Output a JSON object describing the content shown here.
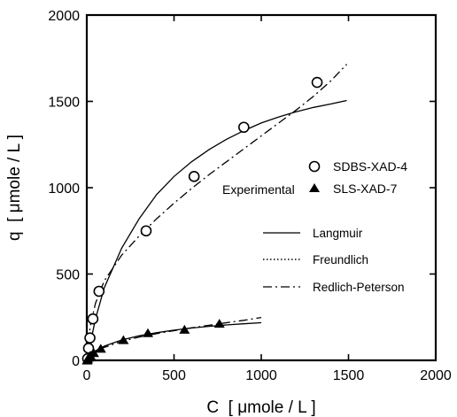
{
  "chart_data": {
    "type": "scatter",
    "xlabel": "C  [ μmole / L ]",
    "ylabel": "q  [ μmole / L ]",
    "xlim": [
      0,
      2000
    ],
    "ylim": [
      0,
      2000
    ],
    "xticks": [
      0,
      500,
      1000,
      1500,
      2000
    ],
    "yticks": [
      0,
      500,
      1000,
      1500,
      2000
    ],
    "x_tick_labels": [
      "0",
      "500",
      "1000",
      "1500",
      "2000"
    ],
    "y_tick_labels": [
      "0",
      "500",
      "1000",
      "1500",
      "2000"
    ],
    "grid": false,
    "legend_placement": "right",
    "legend": {
      "group_label": "Experimental",
      "markers": [
        {
          "label": "SDBS-XAD-4",
          "marker": "open-circle"
        },
        {
          "label": "SLS-XAD-7",
          "marker": "filled-triangle"
        }
      ],
      "lines": [
        {
          "label": "Langmuir",
          "style": "solid"
        },
        {
          "label": "Freundlich",
          "style": "dotted"
        },
        {
          "label": "Redlich-Peterson",
          "style": "dash-dot"
        }
      ]
    },
    "series": [
      {
        "name": "SDBS-XAD-4",
        "marker": "open-circle",
        "x": [
          5,
          10,
          18,
          35,
          70,
          340,
          615,
          900,
          1320
        ],
        "y": [
          10,
          70,
          130,
          240,
          400,
          750,
          1065,
          1350,
          1610
        ]
      },
      {
        "name": "SLS-XAD-7",
        "marker": "filled-triangle",
        "x": [
          2,
          5,
          10,
          20,
          40,
          80,
          210,
          350,
          560,
          760
        ],
        "y": [
          2,
          8,
          18,
          30,
          45,
          70,
          120,
          160,
          180,
          215
        ]
      }
    ],
    "fits": [
      {
        "name": "Langmuir",
        "group": "SDBS-XAD-4",
        "style": "solid",
        "x": [
          0,
          50,
          100,
          200,
          300,
          400,
          500,
          600,
          700,
          800,
          900,
          1000,
          1100,
          1200,
          1300,
          1400,
          1490
        ],
        "y": [
          0,
          240,
          420,
          650,
          820,
          960,
          1065,
          1150,
          1220,
          1280,
          1330,
          1375,
          1410,
          1440,
          1465,
          1485,
          1505
        ]
      },
      {
        "name": "Redlich-Peterson",
        "group": "SDBS-XAD-4",
        "style": "dash-dot",
        "x": [
          0,
          20,
          50,
          100,
          200,
          300,
          400,
          500,
          600,
          700,
          800,
          900,
          1000,
          1100,
          1200,
          1300,
          1400,
          1490
        ],
        "y": [
          0,
          200,
          330,
          460,
          610,
          720,
          820,
          910,
          995,
          1075,
          1150,
          1225,
          1300,
          1375,
          1450,
          1530,
          1620,
          1715
        ]
      },
      {
        "name": "Langmuir",
        "group": "SLS-XAD-7",
        "style": "solid",
        "x": [
          0,
          50,
          100,
          200,
          300,
          400,
          500,
          600,
          700,
          800,
          900,
          1000
        ],
        "y": [
          0,
          55,
          82,
          118,
          142,
          160,
          175,
          187,
          197,
          205,
          212,
          218
        ]
      },
      {
        "name": "Redlich-Peterson",
        "group": "SLS-XAD-7",
        "style": "dash-dot",
        "x": [
          0,
          50,
          100,
          200,
          300,
          400,
          500,
          600,
          700,
          800,
          900,
          1000
        ],
        "y": [
          0,
          50,
          75,
          110,
          135,
          155,
          172,
          188,
          203,
          218,
          232,
          248
        ]
      }
    ]
  }
}
